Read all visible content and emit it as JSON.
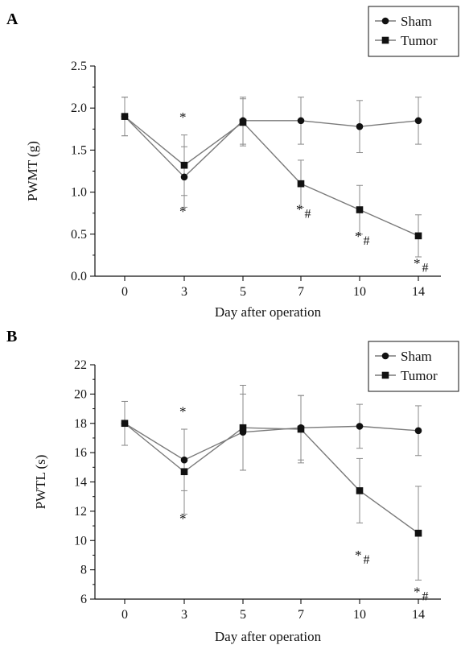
{
  "chart_data": [
    {
      "type": "line",
      "panel": "A",
      "xlabel": "Day after operation",
      "ylabel": "PWMT (g)",
      "categories": [
        "0",
        "3",
        "5",
        "7",
        "10",
        "14"
      ],
      "ylim": [
        0,
        2.5
      ],
      "yticks": [
        "0.0",
        "0.5",
        "1.0",
        "1.5",
        "2.0",
        "2.5"
      ],
      "grid": false,
      "legend_position": "top-right",
      "series": [
        {
          "name": "Sham",
          "marker": "circle",
          "values": [
            1.9,
            1.18,
            1.85,
            1.85,
            1.78,
            1.85
          ],
          "errors": [
            0.23,
            0.36,
            0.28,
            0.28,
            0.31,
            0.28
          ]
        },
        {
          "name": "Tumor",
          "marker": "square",
          "values": [
            1.9,
            1.32,
            1.83,
            1.1,
            0.79,
            0.48
          ],
          "errors": [
            0.23,
            0.36,
            0.28,
            0.28,
            0.29,
            0.25
          ]
        }
      ],
      "annotations": [
        {
          "x": "3",
          "y": 1.84,
          "text": "*"
        },
        {
          "x": "3",
          "y": 0.72,
          "text": "*"
        },
        {
          "x": "7",
          "y": 0.74,
          "text": "*#"
        },
        {
          "x": "10",
          "y": 0.42,
          "text": "*#"
        },
        {
          "x": "14",
          "y": 0.1,
          "text": "*#"
        }
      ]
    },
    {
      "type": "line",
      "panel": "B",
      "xlabel": "Day after operation",
      "ylabel": "PWTL (s)",
      "categories": [
        "0",
        "3",
        "5",
        "7",
        "10",
        "14"
      ],
      "ylim": [
        6,
        22
      ],
      "yticks": [
        "6",
        "8",
        "10",
        "12",
        "14",
        "16",
        "18",
        "20",
        "22"
      ],
      "grid": false,
      "legend_position": "top-right",
      "series": [
        {
          "name": "Sham",
          "marker": "circle",
          "values": [
            18.0,
            15.5,
            17.4,
            17.7,
            17.8,
            17.5
          ],
          "errors": [
            1.5,
            2.1,
            2.6,
            2.2,
            1.5,
            1.7
          ]
        },
        {
          "name": "Tumor",
          "marker": "square",
          "values": [
            18.0,
            14.7,
            17.7,
            17.6,
            13.4,
            10.5
          ],
          "errors": [
            1.5,
            2.9,
            2.9,
            2.3,
            2.2,
            3.2
          ]
        }
      ],
      "annotations": [
        {
          "x": "3",
          "y": 18.5,
          "text": "*"
        },
        {
          "x": "3",
          "y": 11.2,
          "text": "*"
        },
        {
          "x": "10",
          "y": 8.7,
          "text": "*#"
        },
        {
          "x": "14",
          "y": 6.2,
          "text": "*#"
        }
      ]
    }
  ]
}
